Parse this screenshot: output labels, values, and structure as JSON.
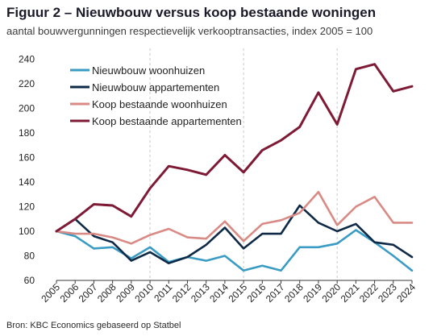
{
  "header": {
    "title": "Figuur 2 – Nieuwbouw versus koop bestaande woningen",
    "subtitle": "aantal bouwvergunningen respectievelijk verkooptransacties, index 2005 = 100"
  },
  "footer": {
    "source": "Bron: KBC Economics gebaseerd op Statbel"
  },
  "chart_data": {
    "type": "line",
    "title": "Figuur 2 – Nieuwbouw versus koop bestaande woningen",
    "subtitle": "aantal bouwvergunningen respectievelijk verkooptransacties, index 2005 = 100",
    "xlabel": "",
    "ylabel": "",
    "x": [
      "2005",
      "2006",
      "2007",
      "2008",
      "2009",
      "2010",
      "2011",
      "2012",
      "2013",
      "2014",
      "2015",
      "2016",
      "2017",
      "2018",
      "2019",
      "2020",
      "2021",
      "2022",
      "2023",
      "2024"
    ],
    "ylim": [
      60,
      245
    ],
    "yticks": [
      60,
      80,
      100,
      120,
      140,
      160,
      180,
      200,
      220,
      240
    ],
    "vertical_gridlines_at": [
      "2010",
      "2015",
      "2020"
    ],
    "legend_position": "top-left",
    "series": [
      {
        "name": "Nieuwbouw woonhuizen",
        "color": "#3a9cc4",
        "values": [
          100,
          96,
          86,
          87,
          78,
          87,
          75,
          79,
          76,
          80,
          68,
          72,
          68,
          87,
          87,
          90,
          101,
          91,
          80,
          68
        ]
      },
      {
        "name": "Nieuwbouw appartementen",
        "color": "#0f2a47",
        "values": [
          100,
          110,
          96,
          91,
          76,
          83,
          74,
          79,
          89,
          103,
          86,
          98,
          98,
          121,
          107,
          100,
          106,
          91,
          89,
          79
        ]
      },
      {
        "name": "Koop bestaande woonhuizen",
        "color": "#d98a84",
        "values": [
          100,
          98,
          98,
          95,
          90,
          97,
          102,
          95,
          94,
          108,
          92,
          106,
          109,
          115,
          132,
          105,
          120,
          128,
          107,
          107
        ]
      },
      {
        "name": "Koop bestaande appartementen",
        "color": "#7e1a35",
        "values": [
          100,
          110,
          122,
          121,
          112,
          135,
          153,
          150,
          146,
          162,
          148,
          166,
          174,
          185,
          213,
          187,
          232,
          236,
          214,
          218
        ]
      }
    ]
  }
}
